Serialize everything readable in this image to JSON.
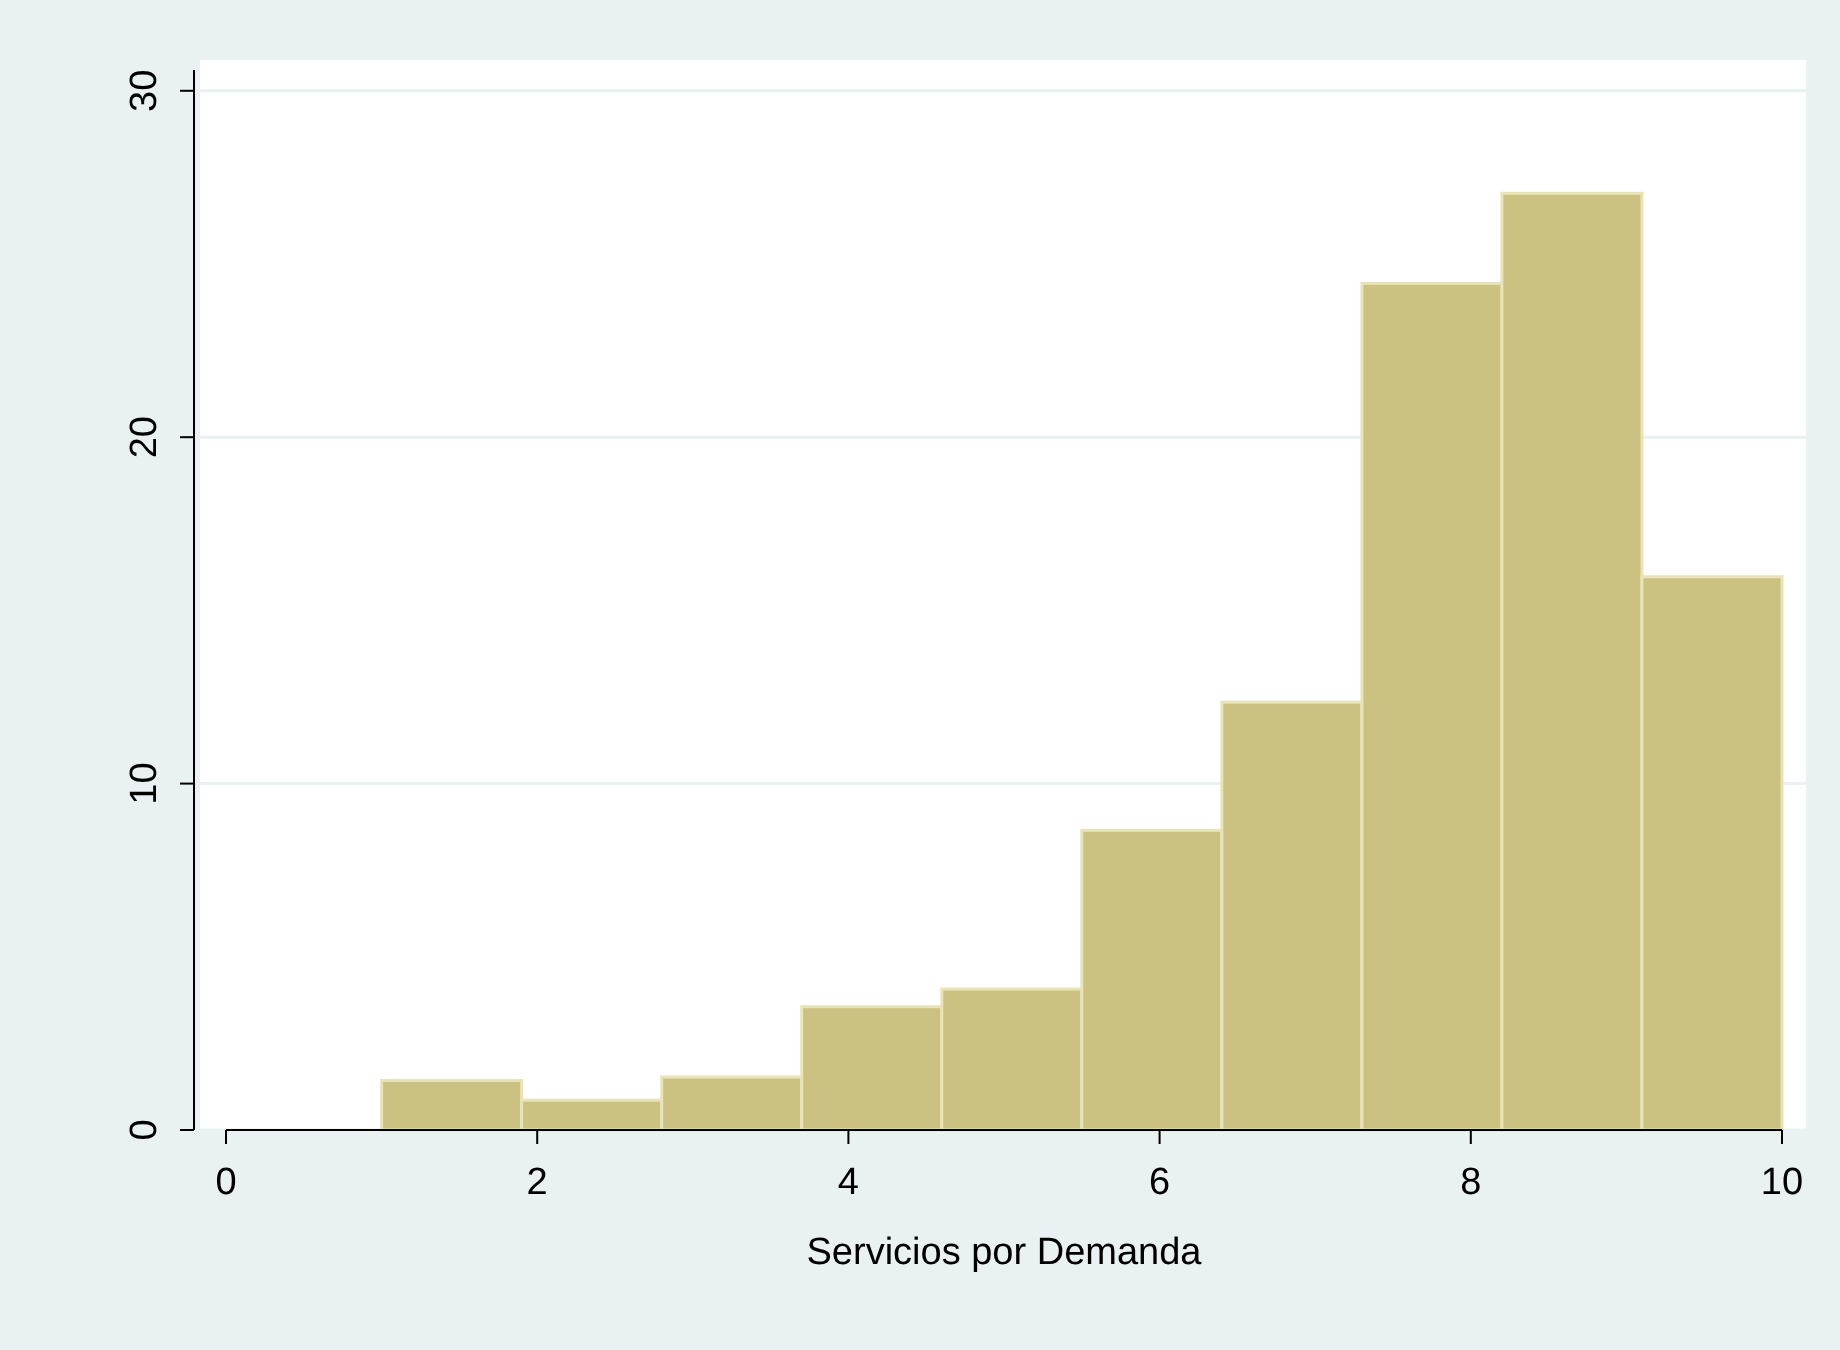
{
  "chart_data": {
    "type": "histogram",
    "xlabel": "Servicios por Demanda",
    "bins": [
      1,
      1.9,
      2.8,
      3.7,
      4.6,
      5.5,
      6.4,
      7.3,
      8.2,
      9.1,
      10
    ],
    "values": [
      1.43,
      0.86,
      1.53,
      3.56,
      4.07,
      8.65,
      12.35,
      24.44,
      27.04,
      15.97
    ],
    "color": "#cbc282",
    "xlim": [
      0,
      10
    ],
    "xticks": [
      0,
      2,
      4,
      6,
      8,
      10
    ],
    "ylim": [
      0,
      30.6
    ],
    "yticks": [
      0,
      10,
      20,
      30
    ],
    "grid": "y"
  }
}
